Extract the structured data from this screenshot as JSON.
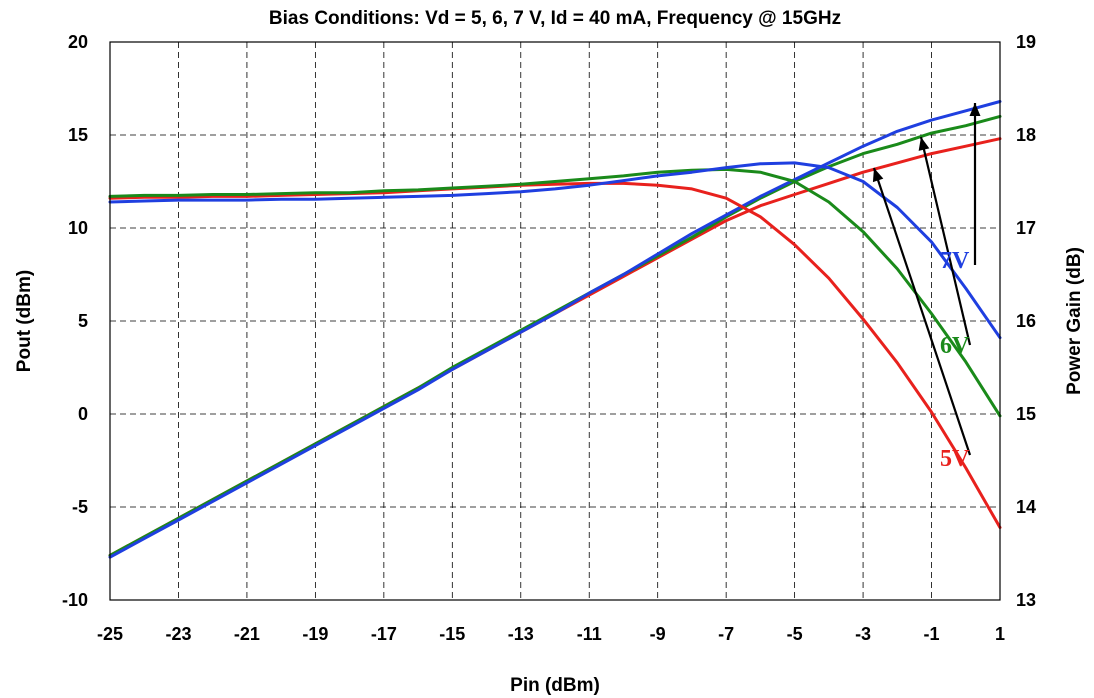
{
  "chart_data": {
    "type": "line",
    "title": "Bias Conditions:  Vd = 5, 6, 7 V, Id = 40 mA, Frequency @ 15GHz",
    "xlabel": "Pin (dBm)",
    "ylabel": "Pout (dBm)",
    "y2label": "Power Gain (dB)",
    "xlim": [
      -25,
      1
    ],
    "ylim": [
      -10,
      20
    ],
    "y2lim": [
      13,
      19
    ],
    "xticks": [
      "-25",
      "-23",
      "-21",
      "-19",
      "-17",
      "-15",
      "-13",
      "-11",
      "-9",
      "-7",
      "-5",
      "-3",
      "-1",
      "1"
    ],
    "yticks": [
      "-10",
      "-5",
      "0",
      "5",
      "10",
      "15",
      "20"
    ],
    "y2ticks": [
      "13",
      "14",
      "15",
      "16",
      "17",
      "18",
      "19"
    ],
    "grid": true,
    "x": [
      -25,
      -24,
      -23,
      -22,
      -21,
      -20,
      -19,
      -18,
      -17,
      -16,
      -15,
      -14,
      -13,
      -12,
      -11,
      -10,
      -9,
      -8,
      -7,
      -6,
      -5,
      -4,
      -3,
      -2,
      -1,
      0,
      1
    ],
    "series": [
      {
        "name": "5V",
        "axis": "left",
        "color": "#e8211d",
        "values": [
          -7.6,
          -6.6,
          -5.6,
          -4.6,
          -3.6,
          -2.6,
          -1.6,
          -0.6,
          0.4,
          1.4,
          2.4,
          3.4,
          4.4,
          5.4,
          6.4,
          7.4,
          8.4,
          9.4,
          10.4,
          11.2,
          11.8,
          12.4,
          13.0,
          13.5,
          14.0,
          14.4,
          14.8
        ]
      },
      {
        "name": "6V",
        "axis": "left",
        "color": "#1a8a1a",
        "values": [
          -7.6,
          -6.6,
          -5.6,
          -4.6,
          -3.6,
          -2.6,
          -1.6,
          -0.6,
          0.4,
          1.4,
          2.5,
          3.5,
          4.5,
          5.5,
          6.5,
          7.5,
          8.5,
          9.5,
          10.6,
          11.6,
          12.5,
          13.3,
          14.0,
          14.5,
          15.1,
          15.5,
          16.0
        ]
      },
      {
        "name": "7V",
        "axis": "left",
        "color": "#1f3fe0",
        "values": [
          -7.7,
          -6.7,
          -5.7,
          -4.7,
          -3.7,
          -2.7,
          -1.7,
          -0.7,
          0.3,
          1.3,
          2.4,
          3.4,
          4.4,
          5.4,
          6.5,
          7.5,
          8.6,
          9.7,
          10.7,
          11.7,
          12.6,
          13.5,
          14.4,
          15.2,
          15.8,
          16.3,
          16.8
        ]
      },
      {
        "name": "5V",
        "axis": "right",
        "color": "#e8211d",
        "values": [
          17.32,
          17.33,
          17.33,
          17.34,
          17.34,
          17.35,
          17.36,
          17.37,
          17.38,
          17.4,
          17.42,
          17.44,
          17.46,
          17.47,
          17.48,
          17.48,
          17.46,
          17.42,
          17.32,
          17.12,
          16.82,
          16.46,
          16.02,
          15.55,
          15.02,
          14.42,
          13.78
        ]
      },
      {
        "name": "6V",
        "axis": "right",
        "color": "#1a8a1a",
        "values": [
          17.34,
          17.35,
          17.35,
          17.36,
          17.36,
          17.37,
          17.38,
          17.38,
          17.4,
          17.41,
          17.43,
          17.45,
          17.47,
          17.5,
          17.53,
          17.56,
          17.6,
          17.62,
          17.63,
          17.6,
          17.5,
          17.28,
          16.96,
          16.56,
          16.08,
          15.56,
          14.98
        ]
      },
      {
        "name": "7V",
        "axis": "right",
        "color": "#1f3fe0",
        "values": [
          17.28,
          17.29,
          17.3,
          17.3,
          17.3,
          17.31,
          17.31,
          17.32,
          17.33,
          17.34,
          17.35,
          17.37,
          17.39,
          17.42,
          17.46,
          17.51,
          17.56,
          17.6,
          17.65,
          17.69,
          17.7,
          17.65,
          17.5,
          17.22,
          16.85,
          16.35,
          15.82
        ]
      }
    ],
    "annotations": [
      {
        "label": "7V",
        "color": "#1f3fe0"
      },
      {
        "label": "6V",
        "color": "#1a8a1a"
      },
      {
        "label": "5V",
        "color": "#e8211d"
      }
    ]
  }
}
